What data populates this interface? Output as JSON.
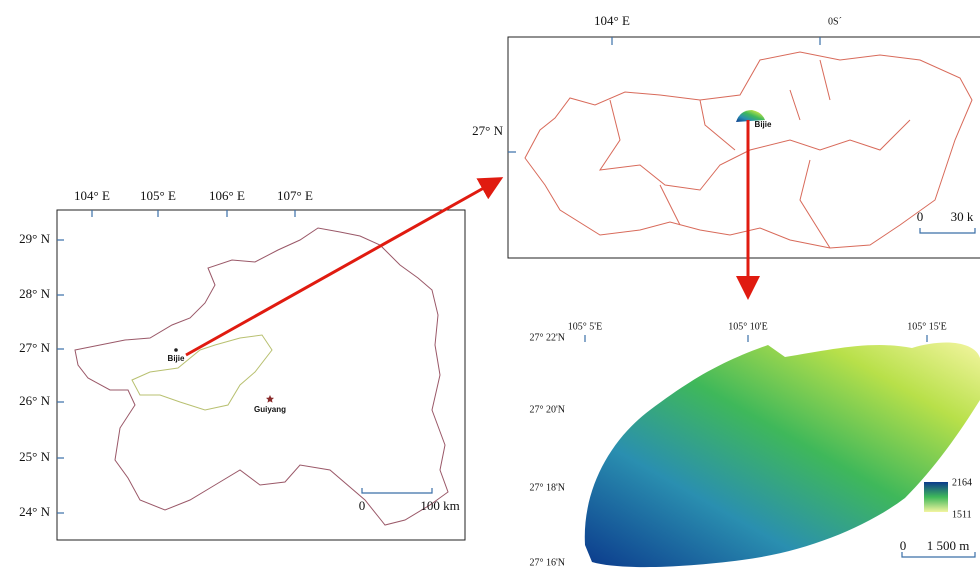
{
  "province_map": {
    "x_labels": [
      "104° E",
      "105° E",
      "106° E",
      "107° E"
    ],
    "y_labels": [
      "29° N",
      "28° N",
      "27° N",
      "26° N",
      "25° N",
      "24° N"
    ],
    "places": [
      "Bijie",
      "Guiyang"
    ],
    "scale": [
      "0",
      "100 km"
    ]
  },
  "city_map": {
    "x_labels": [
      "104° E",
      "0S´"
    ],
    "y_labels": [
      "27° N"
    ],
    "place": "Bijie",
    "scale": [
      "0",
      "30 k"
    ]
  },
  "dem_map": {
    "x_labels": [
      "105° 5'E",
      "105° 10'E",
      "105° 15'E"
    ],
    "y_labels": [
      "27° 22'N",
      "27° 20'N",
      "27° 18'N",
      "27° 16'N"
    ],
    "legend": [
      2164,
      1511
    ],
    "scale": [
      "0",
      "1 500 m"
    ]
  }
}
